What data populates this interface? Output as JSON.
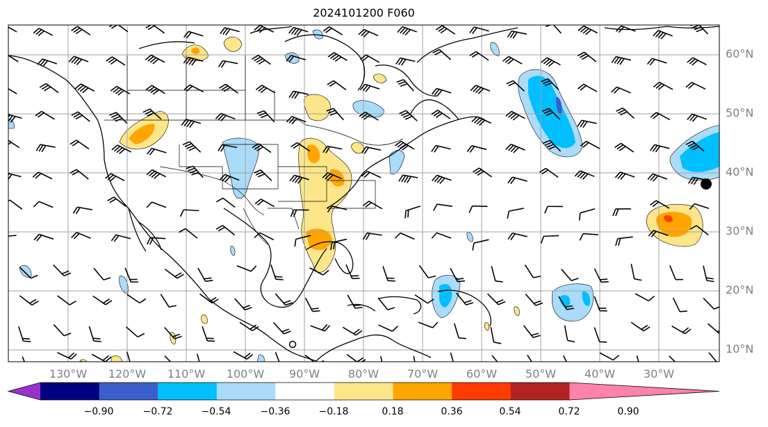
{
  "title": "2024101200 F060",
  "lat_labels": [
    "60°N",
    "50°N",
    "40°N",
    "30°N",
    "20°N",
    "10°N"
  ],
  "lon_labels": [
    "130°W",
    "120°W",
    "110°W",
    "100°W",
    "90°W",
    "80°W",
    "70°W",
    "60°W",
    "50°W",
    "40°W",
    "30°W"
  ],
  "colorbar": {
    "ticks": [
      "−0.90",
      "−0.72",
      "−0.54",
      "−0.36",
      "−0.18",
      "0.18",
      "0.36",
      "0.54",
      "0.72",
      "0.90"
    ],
    "colors": [
      "#9932cc",
      "#000080",
      "#3a5fcd",
      "#00bfff",
      "#aadcfa",
      "#ffffff",
      "#fde68a",
      "#ffa500",
      "#ff3c00",
      "#b22222",
      "#ff82ab"
    ],
    "extend": "both"
  },
  "map": {
    "projection": "PlateCarree",
    "extent_lon": [
      -140,
      -20
    ],
    "extent_lat": [
      7,
      64
    ],
    "gridlines": true,
    "wind_barbs": true
  },
  "colors": {
    "grid": "#a0a0a0",
    "coast": "#000000",
    "label": "#7f7f7f"
  }
}
